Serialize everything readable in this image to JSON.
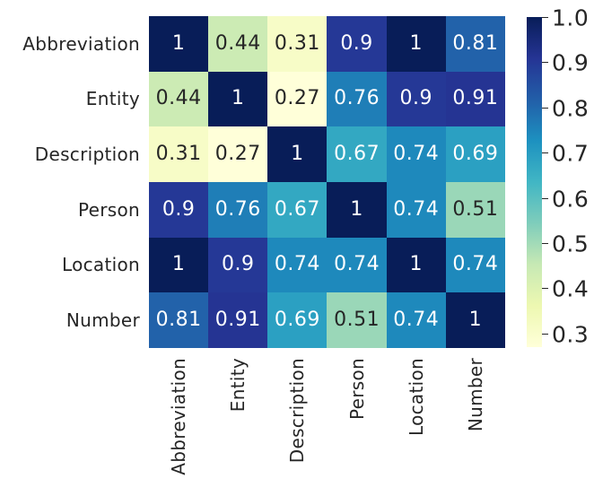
{
  "chart_data": {
    "type": "heatmap",
    "title": "",
    "xlabel": "",
    "ylabel": "",
    "categories": [
      "Abbreviation",
      "Entity",
      "Description",
      "Person",
      "Location",
      "Number"
    ],
    "matrix": [
      [
        1,
        0.44,
        0.31,
        0.9,
        1,
        0.81
      ],
      [
        0.44,
        1,
        0.27,
        0.76,
        0.9,
        0.91
      ],
      [
        0.31,
        0.27,
        1,
        0.67,
        0.74,
        0.69
      ],
      [
        0.9,
        0.76,
        0.67,
        1,
        0.74,
        0.51
      ],
      [
        1,
        0.9,
        0.74,
        0.74,
        1,
        0.74
      ],
      [
        0.81,
        0.91,
        0.69,
        0.51,
        0.74,
        1
      ]
    ],
    "annotated": true,
    "colormap": {
      "name": "YlGnBu",
      "stops": [
        "#ffffd9",
        "#edf8b1",
        "#c7e9b4",
        "#7fcdbb",
        "#41b6c4",
        "#1d91c0",
        "#225ea8",
        "#253494",
        "#081d58"
      ]
    },
    "vmin": 0.27,
    "vmax": 1.0,
    "colorbar": {
      "position": "right",
      "tick_values": [
        1.0,
        0.9,
        0.8,
        0.7,
        0.6,
        0.5,
        0.4,
        0.3
      ],
      "tick_labels": [
        "1.0",
        "0.9",
        "0.8",
        "0.7",
        "0.6",
        "0.5",
        "0.4",
        "0.3"
      ]
    },
    "grid": false,
    "legend": false,
    "colors": {
      "background": "#ffffff",
      "axis_text": "#262626",
      "annot_dark": "#262626",
      "annot_light": "#ffffff"
    }
  }
}
